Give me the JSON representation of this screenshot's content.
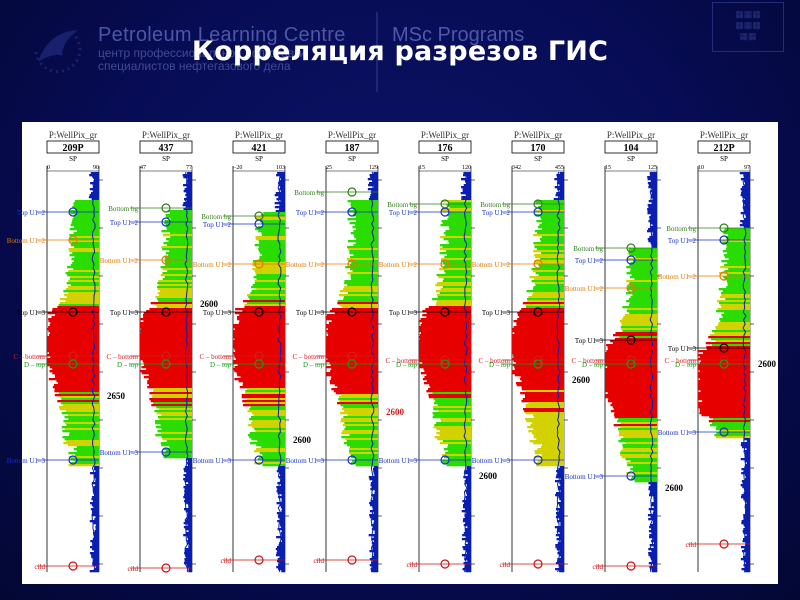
{
  "slide": {
    "title": "Корреляция разрезов ГИС",
    "brand_name": "Petroleum Learning Centre",
    "brand_sub1": "центр профессиональной подготовки",
    "brand_sub2": "специалистов нефтегазового дела",
    "program": "MSc Programs"
  },
  "log_panel": {
    "palette": {
      "red": "#e60000",
      "yellow": "#d2d200",
      "green": "#2adc00",
      "blue": "#0a1fb0",
      "cyan_line": "#17a8b5"
    },
    "colors": {
      "bottom": "#2f7f1a",
      "top": "#1530c8",
      "u13": "#000000",
      "orange": "#e07a00",
      "cbottom": "#d81c1c",
      "dtop": "#1a9a1a",
      "cild": "#cc1010"
    },
    "wells": [
      {
        "track_label": "P:WellPix_gr",
        "name": "209P",
        "curve": "SP",
        "min": "0",
        "max": "90",
        "depth_label": "2650",
        "markers": [
          {
            "name": "Top U1–2",
            "kind": "top",
            "depth": 0.1
          },
          {
            "name": "Bottom U1–2",
            "kind": "orange",
            "depth": 0.17
          },
          {
            "name": "Top U1–3",
            "kind": "u13",
            "depth": 0.35
          },
          {
            "name": "C – bottom",
            "kind": "cbottom",
            "depth": 0.46
          },
          {
            "name": "D – top",
            "kind": "dtop",
            "depth": 0.48
          },
          {
            "name": "Bottom U1–3",
            "kind": "top",
            "depth": 0.72
          },
          {
            "name": "cild",
            "kind": "cild",
            "depth": 0.985
          }
        ]
      },
      {
        "track_label": "P:WellPix_gr",
        "name": "437",
        "curve": "SP",
        "min": "47",
        "max": "77",
        "depth_label": "2600",
        "markers": [
          {
            "name": "Bottom bg",
            "kind": "bottom",
            "depth": 0.09
          },
          {
            "name": "Top U1–2",
            "kind": "top",
            "depth": 0.125
          },
          {
            "name": "Bottom U1–2",
            "kind": "orange",
            "depth": 0.22
          },
          {
            "name": "Top U1–3",
            "kind": "u13",
            "depth": 0.35
          },
          {
            "name": "C – bottom",
            "kind": "cbottom",
            "depth": 0.46
          },
          {
            "name": "D – top",
            "kind": "dtop",
            "depth": 0.48
          },
          {
            "name": "Bottom U1–3",
            "kind": "top",
            "depth": 0.7
          },
          {
            "name": "cild",
            "kind": "cild",
            "depth": 0.99
          }
        ]
      },
      {
        "track_label": "P:WellPix_gr",
        "name": "421",
        "curve": "SP",
        "min": "−20",
        "max": "103",
        "depth_label": "2600",
        "markers": [
          {
            "name": "Bottom bg",
            "kind": "bottom",
            "depth": 0.11
          },
          {
            "name": "Top U1–2",
            "kind": "top",
            "depth": 0.13
          },
          {
            "name": "Bottom U1–2",
            "kind": "orange",
            "depth": 0.23
          },
          {
            "name": "Top U1–3",
            "kind": "u13",
            "depth": 0.35
          },
          {
            "name": "C – bottom",
            "kind": "cbottom",
            "depth": 0.46
          },
          {
            "name": "D – top",
            "kind": "dtop",
            "depth": 0.48
          },
          {
            "name": "Bottom U1–3",
            "kind": "top",
            "depth": 0.72
          },
          {
            "name": "cild",
            "kind": "cild",
            "depth": 0.97
          }
        ]
      },
      {
        "track_label": "P:WellPix_gr",
        "name": "187",
        "curve": "SP",
        "min": "25",
        "max": "129",
        "depth_label": "2600",
        "markers": [
          {
            "name": "Bottom bg",
            "kind": "bottom",
            "depth": 0.05
          },
          {
            "name": "Top U1–2",
            "kind": "top",
            "depth": 0.1
          },
          {
            "name": "Bottom U1–2",
            "kind": "orange",
            "depth": 0.23
          },
          {
            "name": "Top U1–3",
            "kind": "u13",
            "depth": 0.35
          },
          {
            "name": "C – bottom",
            "kind": "cbottom",
            "depth": 0.46
          },
          {
            "name": "D – top",
            "kind": "dtop",
            "depth": 0.48
          },
          {
            "name": "Bottom U1–3",
            "kind": "top",
            "depth": 0.72
          },
          {
            "name": "cild",
            "kind": "cild",
            "depth": 0.97
          }
        ]
      },
      {
        "track_label": "P:WellPix_gr",
        "name": "176",
        "curve": "SP",
        "min": "15",
        "max": "120",
        "depth_label": "2600",
        "markers": [
          {
            "name": "Bottom bg",
            "kind": "bottom",
            "depth": 0.08
          },
          {
            "name": "Top U1–2",
            "kind": "top",
            "depth": 0.1
          },
          {
            "name": "Bottom U1–2",
            "kind": "orange",
            "depth": 0.23
          },
          {
            "name": "Top U1–3",
            "kind": "u13",
            "depth": 0.35
          },
          {
            "name": "C – bottom",
            "kind": "cbottom",
            "depth": 0.47
          },
          {
            "name": "D – top",
            "kind": "dtop",
            "depth": 0.48
          },
          {
            "name": "Bottom U1–3",
            "kind": "top",
            "depth": 0.72
          },
          {
            "name": "cild",
            "kind": "cild",
            "depth": 0.98
          }
        ]
      },
      {
        "track_label": "P:WellPix_gr",
        "name": "170",
        "curve": "SP",
        "min": "342",
        "max": "455",
        "depth_label": "2600",
        "markers": [
          {
            "name": "Bottom bg",
            "kind": "bottom",
            "depth": 0.08
          },
          {
            "name": "Top U1–2",
            "kind": "top",
            "depth": 0.1
          },
          {
            "name": "Bottom U1–2",
            "kind": "orange",
            "depth": 0.23
          },
          {
            "name": "Top U1–3",
            "kind": "u13",
            "depth": 0.35
          },
          {
            "name": "C – bottom",
            "kind": "cbottom",
            "depth": 0.47
          },
          {
            "name": "D – top",
            "kind": "dtop",
            "depth": 0.48
          },
          {
            "name": "Bottom U1–3",
            "kind": "top",
            "depth": 0.72
          },
          {
            "name": "cild",
            "kind": "cild",
            "depth": 0.98
          }
        ]
      },
      {
        "track_label": "P:WellPix_gr",
        "name": "104",
        "curve": "SP",
        "min": "15",
        "max": "125",
        "depth_label": "2600",
        "markers": [
          {
            "name": "Bottom bg",
            "kind": "bottom",
            "depth": 0.19
          },
          {
            "name": "Top U1–2",
            "kind": "top",
            "depth": 0.22
          },
          {
            "name": "Bottom U1–2",
            "kind": "orange",
            "depth": 0.29
          },
          {
            "name": "Top U1–3",
            "kind": "u13",
            "depth": 0.42
          },
          {
            "name": "C – bottom",
            "kind": "cbottom",
            "depth": 0.47
          },
          {
            "name": "D – top",
            "kind": "dtop",
            "depth": 0.48
          },
          {
            "name": "Bottom U1–3",
            "kind": "top",
            "depth": 0.76
          },
          {
            "name": "cild",
            "kind": "cild",
            "depth": 0.985
          }
        ]
      },
      {
        "track_label": "P:WellPix_gr",
        "name": "212P",
        "curve": "SP",
        "min": "10",
        "max": "97",
        "depth_label": "2600",
        "markers": [
          {
            "name": "Bottom bg",
            "kind": "bottom",
            "depth": 0.14
          },
          {
            "name": "Top U1–2",
            "kind": "top",
            "depth": 0.17
          },
          {
            "name": "Bottom U1–2",
            "kind": "orange",
            "depth": 0.26
          },
          {
            "name": "Top U1–3",
            "kind": "u13",
            "depth": 0.44
          },
          {
            "name": "C – bottom",
            "kind": "cbottom",
            "depth": 0.47
          },
          {
            "name": "D – top",
            "kind": "dtop",
            "depth": 0.48
          },
          {
            "name": "Bottom U1–3",
            "kind": "top",
            "depth": 0.65
          },
          {
            "name": "cild",
            "kind": "cild",
            "depth": 0.93
          }
        ]
      }
    ]
  }
}
